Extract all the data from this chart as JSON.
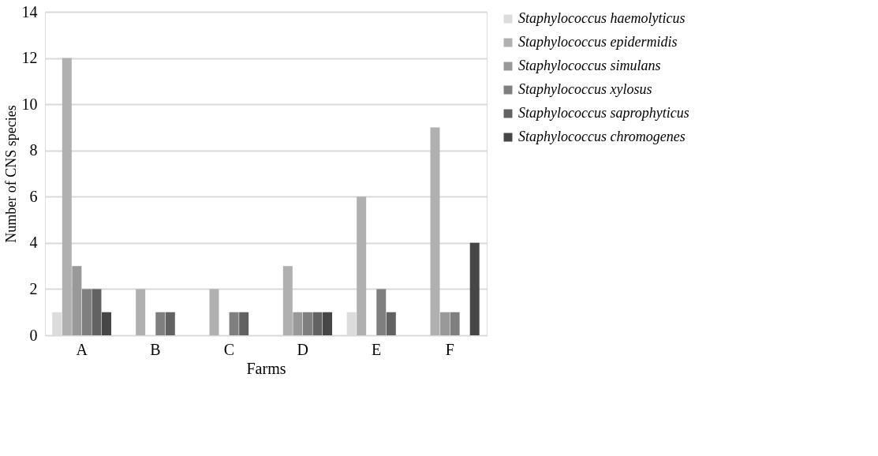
{
  "chart_data": {
    "type": "bar",
    "xlabel": "Farms",
    "ylabel": "Number of CNS species",
    "categories": [
      "A",
      "B",
      "C",
      "D",
      "E",
      "F"
    ],
    "series": [
      {
        "name": "Staphylococcus haemolyticus",
        "color": "#dcdcdc",
        "values": [
          1,
          0,
          0,
          0,
          1,
          0
        ]
      },
      {
        "name": "Staphylococcus epidermidis",
        "color": "#b0b0b0",
        "values": [
          12,
          2,
          2,
          3,
          6,
          9
        ]
      },
      {
        "name": "Staphylococcus simulans",
        "color": "#999999",
        "values": [
          3,
          0,
          0,
          1,
          0,
          1
        ]
      },
      {
        "name": "Staphylococcus xylosus",
        "color": "#7f7f7f",
        "values": [
          2,
          1,
          1,
          1,
          2,
          1
        ]
      },
      {
        "name": "Staphylococcus saprophyticus",
        "color": "#626262",
        "values": [
          2,
          1,
          1,
          1,
          1,
          0
        ]
      },
      {
        "name": "Staphylococcus chromogenes",
        "color": "#464646",
        "values": [
          1,
          0,
          0,
          1,
          0,
          4
        ]
      }
    ],
    "ylim": [
      0,
      14
    ],
    "yticks": [
      0,
      2,
      4,
      6,
      8,
      10,
      12,
      14
    ],
    "grid": "y",
    "legend": "right"
  }
}
